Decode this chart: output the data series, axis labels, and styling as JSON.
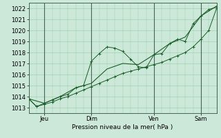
{
  "title": "",
  "xlabel": "Pression niveau de la mer( hPa )",
  "ylabel": "",
  "bg_color": "#cce8d8",
  "grid_color": "#99ccaa",
  "line_color": "#1a5c2a",
  "xlim": [
    0,
    96
  ],
  "ylim": [
    1012.5,
    1022.5
  ],
  "yticks": [
    1013,
    1014,
    1015,
    1016,
    1017,
    1018,
    1019,
    1020,
    1021,
    1022
  ],
  "xtick_positions": [
    8,
    32,
    64,
    88
  ],
  "xtick_labels": [
    "Jeu",
    "Dim",
    "Ven",
    "Sam"
  ],
  "vline_positions": [
    8,
    32,
    64,
    88
  ],
  "line1_x": [
    0,
    4,
    8,
    12,
    16,
    20,
    24,
    28,
    32,
    36,
    40,
    44,
    48,
    52,
    56,
    60,
    64,
    68,
    72,
    76,
    80,
    84,
    88,
    92,
    96
  ],
  "line1_y": [
    1013.8,
    1013.1,
    1013.4,
    1013.7,
    1014.0,
    1014.2,
    1014.8,
    1015.0,
    1017.2,
    1017.9,
    1018.5,
    1018.4,
    1018.1,
    1017.4,
    1016.7,
    1016.6,
    1017.8,
    1017.9,
    1018.8,
    1019.2,
    1019.0,
    1020.6,
    1021.3,
    1021.9,
    1022.1
  ],
  "line2_x": [
    0,
    4,
    8,
    12,
    16,
    20,
    24,
    28,
    32,
    36,
    40,
    44,
    48,
    52,
    56,
    60,
    64,
    68,
    72,
    76,
    80,
    84,
    88,
    92,
    96
  ],
  "line2_y": [
    1013.8,
    1013.1,
    1013.3,
    1013.5,
    1013.8,
    1014.0,
    1014.3,
    1014.6,
    1014.9,
    1015.2,
    1015.5,
    1015.8,
    1016.1,
    1016.3,
    1016.5,
    1016.7,
    1016.9,
    1017.1,
    1017.4,
    1017.7,
    1018.0,
    1018.5,
    1019.2,
    1020.0,
    1022.0
  ],
  "line3_x": [
    0,
    8,
    16,
    24,
    32,
    40,
    48,
    56,
    64,
    72,
    80,
    88,
    96
  ],
  "line3_y": [
    1013.8,
    1013.4,
    1014.0,
    1014.8,
    1015.2,
    1016.5,
    1017.0,
    1016.9,
    1017.8,
    1018.8,
    1019.4,
    1021.3,
    1022.2
  ]
}
